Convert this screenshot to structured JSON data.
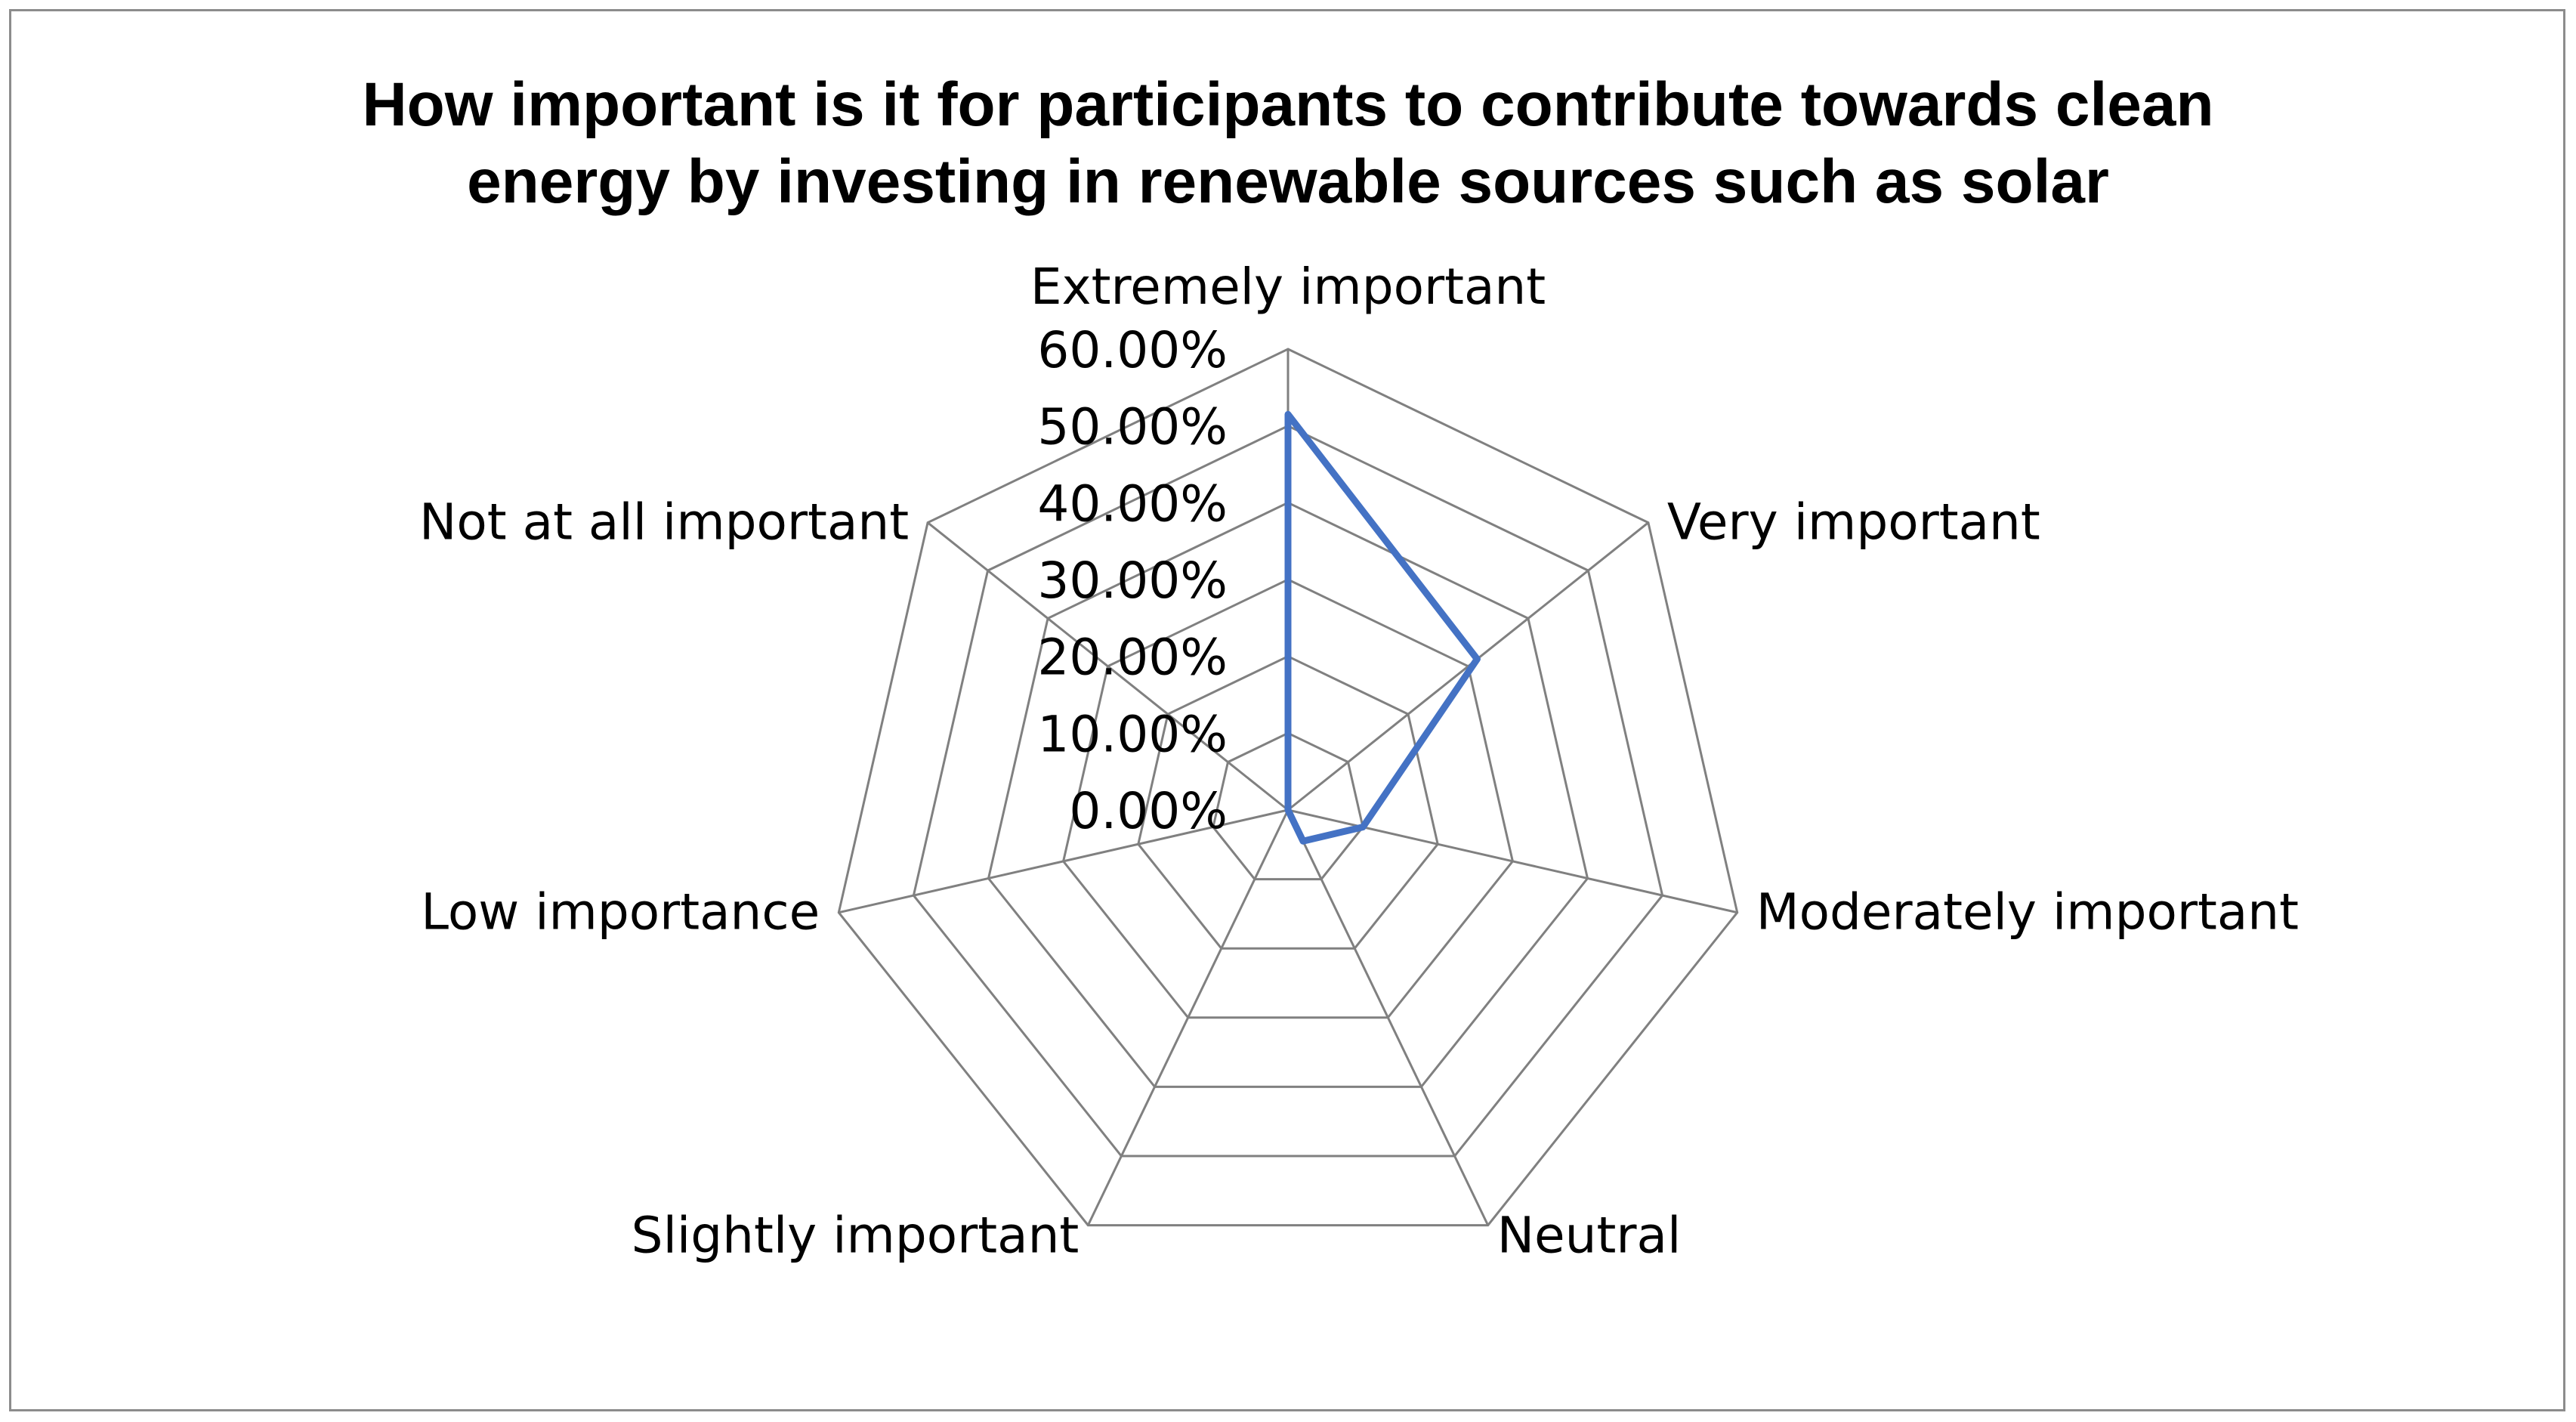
{
  "chart_data": {
    "type": "radar",
    "title_lines": [
      "How important is it for participants to contribute towards clean",
      "energy by investing in renewable sources such as solar"
    ],
    "categories": [
      "Extremely important",
      "Very important",
      "Moderately important",
      "Neutral",
      "Slightly important",
      "Low importance",
      "Not at all important"
    ],
    "series": [
      {
        "values": [
          0.515,
          0.315,
          0.1,
          0.045,
          0.0,
          0.0,
          0.0
        ],
        "color": "#4472C4"
      }
    ],
    "rlim": [
      0,
      0.6
    ],
    "ticks": [
      0,
      0.1,
      0.2,
      0.3,
      0.4,
      0.5,
      0.6
    ],
    "tick_labels": [
      "0.00%",
      "10.00%",
      "20.00%",
      "30.00%",
      "40.00%",
      "50.00%",
      "60.00%"
    ],
    "grid": true,
    "legend": "none",
    "grid_color": "#808080"
  }
}
